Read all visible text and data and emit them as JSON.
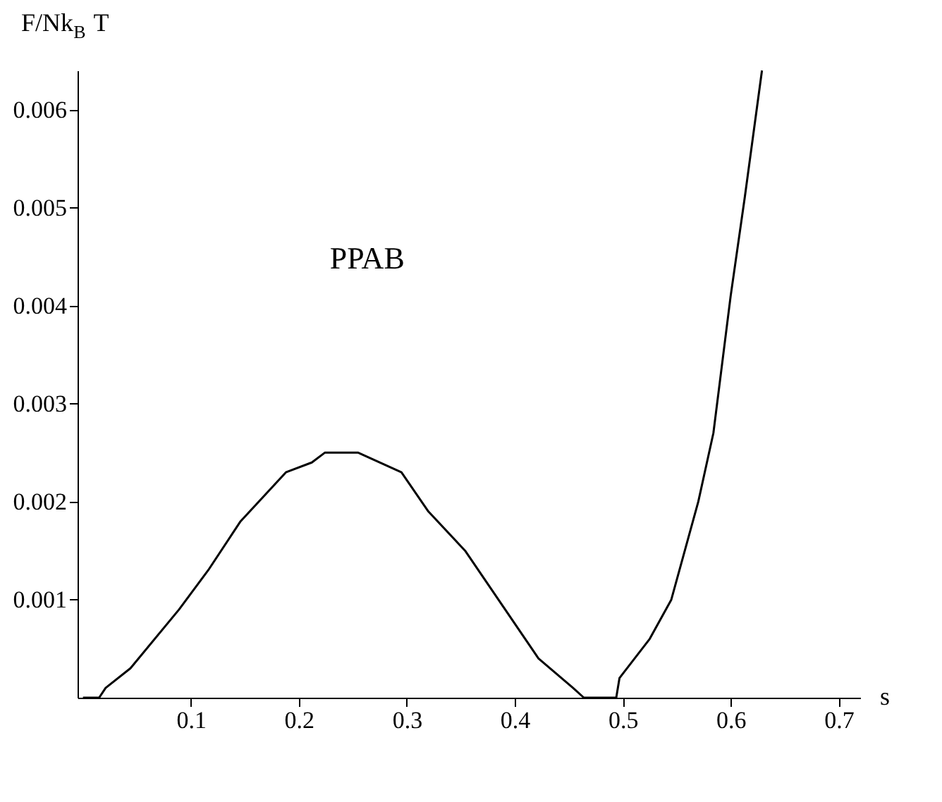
{
  "chart_data": {
    "type": "line",
    "xlabel": "s",
    "ylabel": "F/Nk$_{B}$ T",
    "annotations": [
      "PPAB"
    ],
    "x": [
      0,
      0.015,
      0.021,
      0.044,
      0.089,
      0.116,
      0.146,
      0.188,
      0.212,
      0.224,
      0.255,
      0.295,
      0.32,
      0.354,
      0.422,
      0.454,
      0.464,
      0.494,
      0.497,
      0.525,
      0.545,
      0.57,
      0.584,
      0.6,
      0.613,
      0.629
    ],
    "series": [
      {
        "color": "#000000",
        "values": [
          0,
          0,
          0.0001,
          0.0003,
          0.0009,
          0.0013,
          0.0018,
          0.0023,
          0.0024,
          0.0025,
          0.0025,
          0.0023,
          0.0019,
          0.0015,
          0.0004,
          0.0001,
          0,
          0,
          0.0002,
          0.0006,
          0.001,
          0.002,
          0.0027,
          0.0041,
          0.0051,
          0.0064
        ]
      }
    ],
    "xlim": [
      -0.005,
      0.72
    ],
    "ylim": [
      0,
      0.0064
    ],
    "xticks": [
      0.1,
      0.2,
      0.3,
      0.4,
      0.5,
      0.6,
      0.7
    ],
    "yticks": [
      0.001,
      0.002,
      0.003,
      0.004,
      0.005,
      0.006
    ],
    "grid": false,
    "legend": false,
    "marker": "none",
    "line_style": "solid"
  }
}
